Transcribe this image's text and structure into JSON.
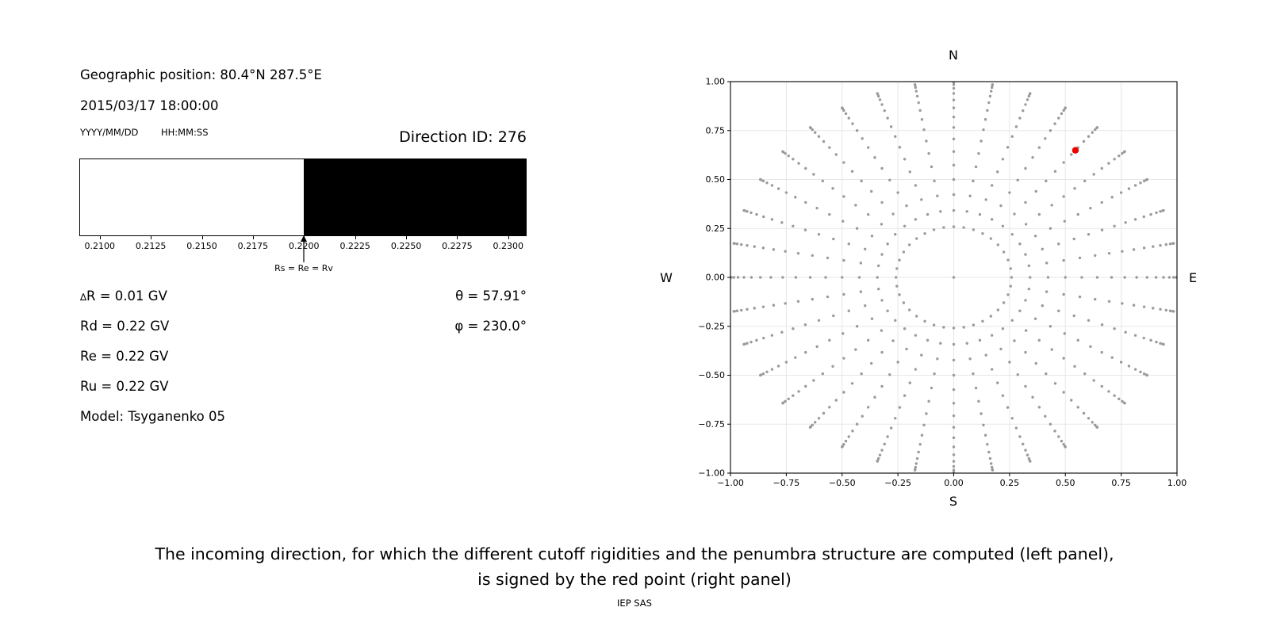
{
  "left_panel": {
    "geo_position": "Geographic position: 80.4°N 287.5°E",
    "datetime": "2015/03/17 18:00:00",
    "date_format_hint": "YYYY/MM/DD",
    "time_format_hint": "HH:MM:SS",
    "direction_id": "Direction ID: 276",
    "values": {
      "delta_symbol": "∆",
      "delta_rest": "R = 0.01 GV",
      "rd": "Rd = 0.22 GV",
      "re": "Re = 0.22 GV",
      "ru": "Ru = 0.22 GV",
      "model": "Model: Tsyganenko 05",
      "theta": "θ = 57.91°",
      "phi": "φ = 230.0°"
    }
  },
  "caption": {
    "line1": "The incoming direction, for which the different cutoff rigidities and the penumbra structure are computed (left panel),",
    "line2": "is signed by the red point (right panel)",
    "credit": "IEP SAS"
  },
  "chart_data": [
    {
      "id": "penumbra-bar",
      "type": "bar",
      "description": "Penumbra structure along rigidity axis: allowed band (white) below the cutoff, forbidden band (black) above it",
      "xlabel_unit": "GV",
      "xlim": [
        0.209,
        0.2309
      ],
      "boundary": 0.22,
      "boundary_label": "Rs = Re = Rv",
      "regions": [
        {
          "name": "allowed",
          "from": 0.209,
          "to": 0.22,
          "color": "#ffffff"
        },
        {
          "name": "forbidden",
          "from": 0.22,
          "to": 0.2309,
          "color": "#000000"
        }
      ],
      "xticks": [
        0.21,
        0.2125,
        0.215,
        0.2175,
        0.22,
        0.2225,
        0.225,
        0.2275,
        0.23
      ],
      "xtick_labels": [
        "0.2100",
        "0.2125",
        "0.2150",
        "0.2175",
        "0.2200",
        "0.2225",
        "0.2250",
        "0.2275",
        "0.2300"
      ]
    },
    {
      "id": "direction-map",
      "type": "scatter",
      "description": "Sky map of incoming directions: zenith-azimuth grid projected as x=sin(zenith)*sin(az), y=sin(zenith)*cos(az)",
      "compass_labels": {
        "top": "N",
        "bottom": "S",
        "left": "W",
        "right": "E"
      },
      "xlim": [
        -1,
        1
      ],
      "ylim": [
        -1,
        1
      ],
      "grid": true,
      "xticks": [
        -1,
        -0.75,
        -0.5,
        -0.25,
        0,
        0.25,
        0.5,
        0.75,
        1
      ],
      "xtick_labels": [
        "−1.00",
        "−0.75",
        "−0.50",
        "−0.25",
        "0.00",
        "0.25",
        "0.50",
        "0.75",
        "1.00"
      ],
      "yticks": [
        1,
        0.75,
        0.5,
        0.25,
        0,
        -0.25,
        -0.5,
        -0.75,
        -1
      ],
      "ytick_labels": [
        "1.00",
        "0.75",
        "0.50",
        "0.25",
        "0.00",
        "−0.25",
        "−0.50",
        "−0.75",
        "−1.00"
      ],
      "series": [
        {
          "name": "direction-grid",
          "marker": "dot",
          "color": "#9a9a9a",
          "marker_radius_px": 1.7,
          "azimuth_deg_start": 0,
          "azimuth_deg_step": 10,
          "azimuth_count": 36,
          "zenith_deg_start": 15,
          "zenith_deg_step": 5,
          "zenith_count": 16,
          "includes_center_point": true,
          "point_count": 577,
          "projection": "x = sin(zenith)*sin(azimuth); y = sin(zenith)*cos(azimuth)"
        },
        {
          "name": "selected-direction",
          "marker": "dot",
          "color": "#f00000",
          "marker_radius_px": 4.2,
          "zenith_deg": 57.91,
          "azimuth_plot_deg": 40,
          "x": 0.545,
          "y": 0.649
        }
      ]
    }
  ],
  "style": {
    "grid_color": "#e7e7e7",
    "frame_color": "#000000",
    "dot_color": "#9a9a9a",
    "selected_color": "#f00000"
  }
}
